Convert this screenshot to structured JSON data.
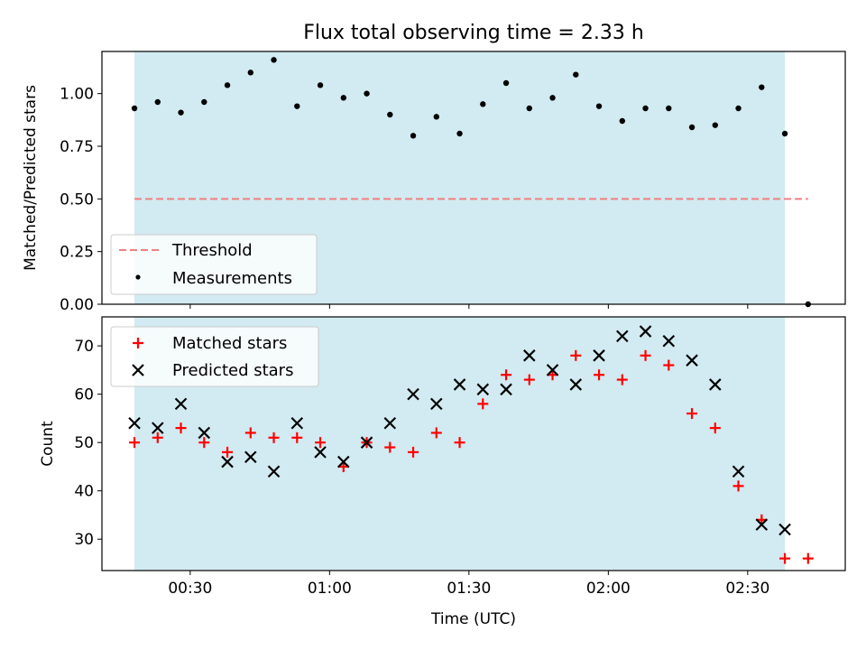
{
  "chart_data": {
    "type": "scatter",
    "title": "Flux total observing time = 2.33 h",
    "xlabel": "Time (UTC)",
    "xlim_minutes": [
      11,
      171
    ],
    "x_ticks": [
      {
        "label": "00:30",
        "minutes": 30
      },
      {
        "label": "01:00",
        "minutes": 60
      },
      {
        "label": "01:30",
        "minutes": 90
      },
      {
        "label": "02:00",
        "minutes": 120
      },
      {
        "label": "02:30",
        "minutes": 150
      }
    ],
    "observing_window_minutes": [
      18,
      158
    ],
    "shade_color": "#add8e6",
    "top_panel": {
      "ylabel": "Matched/Predicted stars",
      "ylim": [
        0,
        1.2
      ],
      "y_ticks": [
        "0.00",
        "0.25",
        "0.50",
        "0.75",
        "1.00"
      ],
      "threshold": {
        "name": "Threshold",
        "value": 0.5,
        "x_range": [
          18,
          163
        ],
        "color": "#f08080"
      },
      "series": {
        "name": "Measurements",
        "color": "#000000",
        "x": [
          18,
          23,
          28,
          33,
          38,
          43,
          48,
          53,
          58,
          63,
          68,
          73,
          78,
          83,
          88,
          93,
          98,
          103,
          108,
          113,
          118,
          123,
          128,
          133,
          138,
          143,
          148,
          153,
          158,
          163
        ],
        "values": [
          0.93,
          0.96,
          0.91,
          0.96,
          1.04,
          1.1,
          1.16,
          0.94,
          1.04,
          0.98,
          1.0,
          0.9,
          0.8,
          0.89,
          0.81,
          0.95,
          1.05,
          0.93,
          0.98,
          1.09,
          0.94,
          0.87,
          0.93,
          0.93,
          0.84,
          0.85,
          0.93,
          1.03,
          0.81,
          0.0
        ]
      },
      "legend": {
        "threshold_label": "Threshold",
        "measurements_label": "Measurements",
        "loc": "lower-left"
      }
    },
    "bottom_panel": {
      "ylabel": "Count",
      "ylim": [
        23.5,
        76
      ],
      "y_ticks": [
        30,
        40,
        50,
        60,
        70
      ],
      "series": [
        {
          "name": "Matched stars",
          "marker": "plus",
          "color": "#ff0000",
          "x": [
            18,
            23,
            28,
            33,
            38,
            43,
            48,
            53,
            58,
            63,
            68,
            73,
            78,
            83,
            88,
            93,
            98,
            103,
            108,
            113,
            118,
            123,
            128,
            133,
            138,
            143,
            148,
            153,
            158,
            163
          ],
          "values": [
            50,
            51,
            53,
            50,
            48,
            52,
            51,
            51,
            50,
            45,
            50,
            49,
            48,
            52,
            50,
            58,
            64,
            63,
            64,
            68,
            64,
            63,
            68,
            66,
            56,
            53,
            41,
            34,
            26,
            26
          ]
        },
        {
          "name": "Predicted stars",
          "marker": "x",
          "color": "#000000",
          "x": [
            18,
            23,
            28,
            33,
            38,
            43,
            48,
            53,
            58,
            63,
            68,
            73,
            78,
            83,
            88,
            93,
            98,
            103,
            108,
            113,
            118,
            123,
            128,
            133,
            138,
            143,
            148,
            153,
            158
          ],
          "values": [
            54,
            53,
            58,
            52,
            46,
            47,
            44,
            54,
            48,
            46,
            50,
            54,
            60,
            58,
            62,
            61,
            61,
            68,
            65,
            62,
            68,
            72,
            73,
            71,
            67,
            62,
            44,
            33,
            32
          ]
        }
      ],
      "legend": {
        "matched_label": "Matched stars",
        "predicted_label": "Predicted stars",
        "loc": "top-left"
      }
    }
  }
}
